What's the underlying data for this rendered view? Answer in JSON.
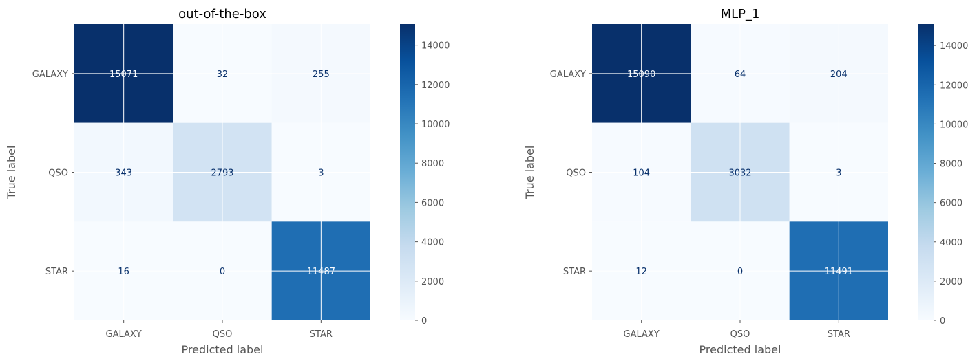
{
  "chart_data": [
    {
      "type": "heatmap",
      "title": "out-of-the-box",
      "xlabel": "Predicted label",
      "ylabel": "True label",
      "x_categories": [
        "GALAXY",
        "QSO",
        "STAR"
      ],
      "y_categories": [
        "GALAXY",
        "QSO",
        "STAR"
      ],
      "matrix": [
        [
          15071,
          32,
          255
        ],
        [
          343,
          2793,
          3
        ],
        [
          16,
          0,
          11487
        ]
      ],
      "colormap": "Blues",
      "colorbar_range": [
        0,
        15071
      ],
      "colorbar_ticks": [
        0,
        2000,
        4000,
        6000,
        8000,
        10000,
        12000,
        14000
      ],
      "grid": true
    },
    {
      "type": "heatmap",
      "title": "MLP_1",
      "xlabel": "Predicted label",
      "ylabel": "True label",
      "x_categories": [
        "GALAXY",
        "QSO",
        "STAR"
      ],
      "y_categories": [
        "GALAXY",
        "QSO",
        "STAR"
      ],
      "matrix": [
        [
          15090,
          64,
          204
        ],
        [
          104,
          3032,
          3
        ],
        [
          12,
          0,
          11491
        ]
      ],
      "colormap": "Blues",
      "colorbar_range": [
        0,
        15090
      ],
      "colorbar_ticks": [
        0,
        2000,
        4000,
        6000,
        8000,
        10000,
        12000,
        14000
      ],
      "grid": true
    }
  ],
  "colors": {
    "cmap_low": "#f7fbff",
    "cmap_high": "#08306b",
    "text_light": "#f7fbff",
    "text_dark": "#08306b",
    "grid": "#ffffff"
  }
}
